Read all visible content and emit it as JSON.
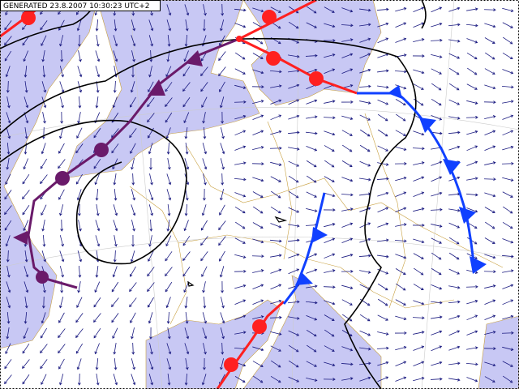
{
  "header": {
    "timestamp": "GENERATED 23.8.2007 10:30:23 UTC+2"
  }
}
